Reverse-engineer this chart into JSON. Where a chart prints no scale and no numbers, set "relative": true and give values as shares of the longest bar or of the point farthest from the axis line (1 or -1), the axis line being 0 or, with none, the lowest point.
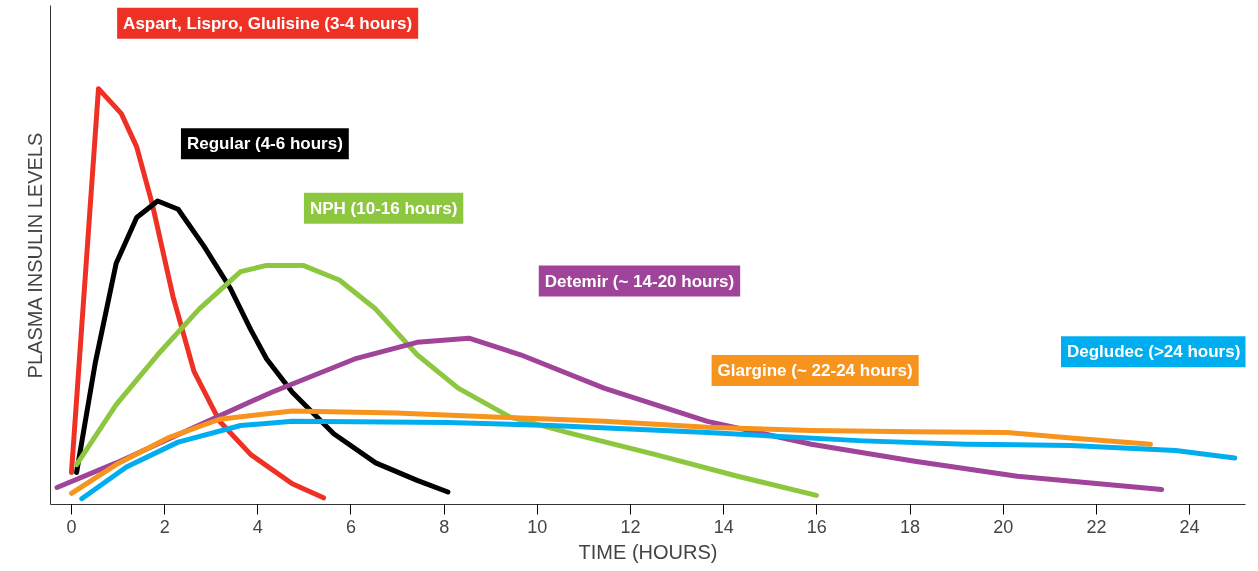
{
  "chart_data": {
    "type": "line",
    "relative": true,
    "xlabel": "TIME (HOURS)",
    "ylabel": "PLASMA INSULIN LEVELS",
    "xlim": [
      -0.45,
      25.2
    ],
    "xticks": [
      0,
      2,
      4,
      6,
      8,
      10,
      12,
      14,
      16,
      18,
      20,
      22,
      24
    ],
    "grid": false,
    "legend": false,
    "marker": "none",
    "line_style": "solid",
    "series": [
      {
        "name": "Aspart, Lispro, Glulisine (3-4 hours)",
        "color": "#ee3124",
        "x": [
          0,
          0.58,
          1.07,
          1.4,
          1.74,
          2.18,
          2.63,
          3.18,
          3.85,
          4.74,
          5.41
        ],
        "values": [
          0.077,
          1.0,
          0.94,
          0.86,
          0.72,
          0.5,
          0.32,
          0.2,
          0.12,
          0.05,
          0.016
        ]
      },
      {
        "name": "Regular (4-6 hours)",
        "color": "#000000",
        "x": [
          0.11,
          0.51,
          0.96,
          1.4,
          1.85,
          2.29,
          2.85,
          3.41,
          3.85,
          4.19,
          4.74,
          5.63,
          6.53,
          7.42,
          8.08
        ],
        "values": [
          0.077,
          0.34,
          0.58,
          0.69,
          0.73,
          0.71,
          0.62,
          0.52,
          0.42,
          0.35,
          0.27,
          0.17,
          0.1,
          0.058,
          0.03
        ]
      },
      {
        "name": "NPH (10-16 hours)",
        "color": "#8dc63f",
        "x": [
          0.11,
          0.96,
          1.85,
          2.74,
          3.63,
          4.19,
          4.97,
          5.75,
          6.53,
          7.42,
          8.3,
          9.42,
          10.76,
          12.54,
          14.3,
          15.99
        ],
        "values": [
          0.096,
          0.24,
          0.36,
          0.47,
          0.56,
          0.575,
          0.575,
          0.54,
          0.47,
          0.36,
          0.28,
          0.21,
          0.17,
          0.12,
          0.068,
          0.022
        ]
      },
      {
        "name": "Detemir (~ 14-20 hours)",
        "color": "#a0449a",
        "x": [
          -0.31,
          0.96,
          2.52,
          4.3,
          6.08,
          7.42,
          8.53,
          9.64,
          11.43,
          13.65,
          15.88,
          18.1,
          20.3,
          23.4
        ],
        "values": [
          0.041,
          0.1,
          0.18,
          0.27,
          0.35,
          0.39,
          0.4,
          0.36,
          0.28,
          0.2,
          0.145,
          0.104,
          0.068,
          0.036
        ]
      },
      {
        "name": "Glargine (~ 22-24 hours)",
        "color": "#f7941d",
        "x": [
          0,
          0.96,
          2.07,
          3.18,
          4.74,
          6.97,
          9.2,
          11.43,
          13.65,
          15.88,
          18.1,
          20.1,
          21.45,
          23.16
        ],
        "values": [
          0.027,
          0.096,
          0.16,
          0.205,
          0.225,
          0.22,
          0.21,
          0.2,
          0.186,
          0.178,
          0.175,
          0.173,
          0.16,
          0.145
        ]
      },
      {
        "name": "Degludec (>24 hours)",
        "color": "#00aeef",
        "x": [
          0.22,
          1.18,
          2.29,
          3.63,
          4.74,
          8.08,
          10.3,
          13.65,
          17.0,
          19.2,
          21.45,
          23.7,
          24.97
        ],
        "values": [
          0.014,
          0.09,
          0.15,
          0.19,
          0.2,
          0.197,
          0.19,
          0.173,
          0.153,
          0.145,
          0.142,
          0.13,
          0.112
        ]
      }
    ]
  }
}
